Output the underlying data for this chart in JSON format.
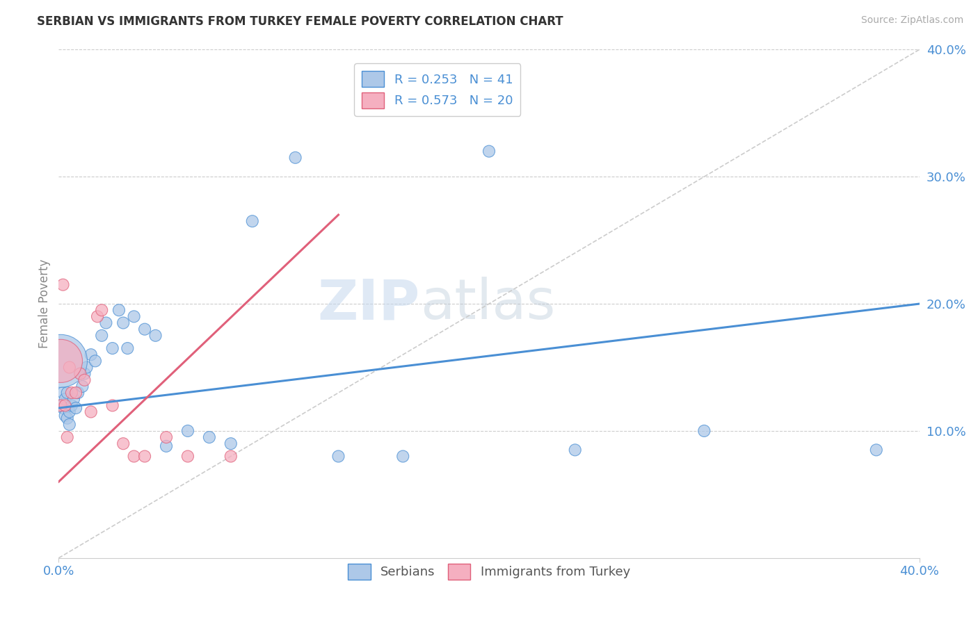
{
  "title": "SERBIAN VS IMMIGRANTS FROM TURKEY FEMALE POVERTY CORRELATION CHART",
  "source": "Source: ZipAtlas.com",
  "ylabel": "Female Poverty",
  "xlim": [
    0.0,
    0.4
  ],
  "ylim": [
    0.0,
    0.4
  ],
  "xtick_labels_edge": [
    "0.0%",
    "40.0%"
  ],
  "xtick_vals_edge": [
    0.0,
    0.4
  ],
  "ytick_labels": [
    "10.0%",
    "20.0%",
    "30.0%",
    "40.0%"
  ],
  "ytick_vals": [
    0.1,
    0.2,
    0.3,
    0.4
  ],
  "legend_r1": "R = 0.253",
  "legend_n1": "N = 41",
  "legend_r2": "R = 0.573",
  "legend_n2": "N = 20",
  "serbian_color": "#adc8e8",
  "turkey_color": "#f5afc0",
  "line_serbian_color": "#4a8fd4",
  "line_turkey_color": "#e0607a",
  "watermark_zip": "ZIP",
  "watermark_atlas": "atlas",
  "background_color": "#ffffff",
  "serbian_x": [
    0.001,
    0.002,
    0.002,
    0.003,
    0.003,
    0.004,
    0.004,
    0.005,
    0.005,
    0.006,
    0.007,
    0.008,
    0.009,
    0.01,
    0.011,
    0.012,
    0.013,
    0.015,
    0.017,
    0.02,
    0.022,
    0.025,
    0.028,
    0.03,
    0.032,
    0.035,
    0.04,
    0.045,
    0.05,
    0.06,
    0.07,
    0.08,
    0.09,
    0.11,
    0.13,
    0.16,
    0.2,
    0.24,
    0.3,
    0.38,
    0.001
  ],
  "serbian_y": [
    0.12,
    0.118,
    0.13,
    0.125,
    0.112,
    0.13,
    0.11,
    0.115,
    0.105,
    0.12,
    0.125,
    0.118,
    0.13,
    0.145,
    0.135,
    0.145,
    0.15,
    0.16,
    0.155,
    0.175,
    0.185,
    0.165,
    0.195,
    0.185,
    0.165,
    0.19,
    0.18,
    0.175,
    0.088,
    0.1,
    0.095,
    0.09,
    0.265,
    0.315,
    0.08,
    0.08,
    0.32,
    0.085,
    0.1,
    0.085,
    0.155
  ],
  "serbian_sizes": [
    150,
    150,
    150,
    150,
    150,
    150,
    150,
    150,
    150,
    150,
    150,
    150,
    150,
    150,
    150,
    150,
    150,
    150,
    150,
    150,
    150,
    150,
    150,
    150,
    150,
    150,
    150,
    150,
    150,
    150,
    150,
    150,
    150,
    150,
    150,
    150,
    150,
    150,
    150,
    150,
    3000
  ],
  "turkey_x": [
    0.001,
    0.002,
    0.003,
    0.004,
    0.005,
    0.006,
    0.008,
    0.01,
    0.012,
    0.015,
    0.018,
    0.02,
    0.025,
    0.03,
    0.035,
    0.04,
    0.05,
    0.06,
    0.08,
    0.001
  ],
  "turkey_y": [
    0.12,
    0.215,
    0.12,
    0.095,
    0.15,
    0.13,
    0.13,
    0.145,
    0.14,
    0.115,
    0.19,
    0.195,
    0.12,
    0.09,
    0.08,
    0.08,
    0.095,
    0.08,
    0.08,
    0.155
  ],
  "turkey_sizes": [
    150,
    150,
    150,
    150,
    150,
    150,
    150,
    150,
    150,
    150,
    150,
    150,
    150,
    150,
    150,
    150,
    150,
    150,
    150,
    2000
  ],
  "serbian_line_x": [
    0.0,
    0.4
  ],
  "serbian_line_y": [
    0.118,
    0.2
  ],
  "turkey_line_x": [
    0.0,
    0.13
  ],
  "turkey_line_y": [
    0.06,
    0.27
  ],
  "ref_line_x": [
    0.0,
    0.4
  ],
  "ref_line_y": [
    0.0,
    0.4
  ]
}
